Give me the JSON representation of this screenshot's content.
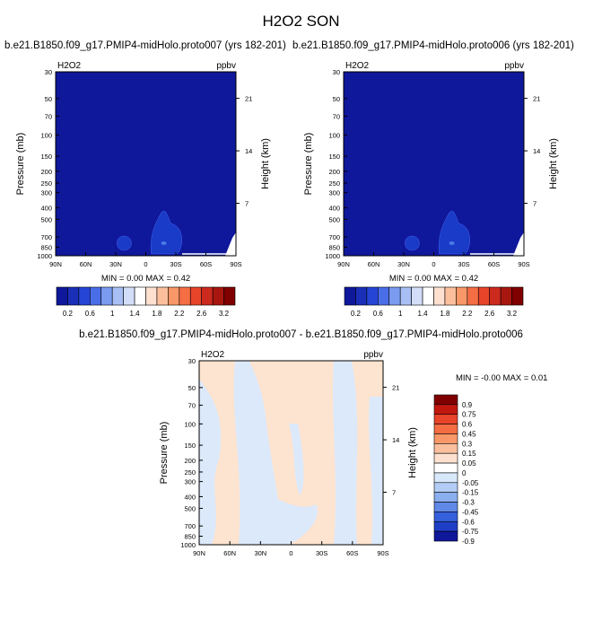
{
  "figure": {
    "title": "H2O2 SON",
    "diff_title": "b.e21.B1850.f09_g17.PMIP4-midHolo.proto007 - b.e21.B1850.f09_g17.PMIP4-midHolo.proto006"
  },
  "chart_data": [
    {
      "type": "heatmap",
      "title": "b.e21.B1850.f09_g17.PMIP4-midHolo.proto007 (yrs 182-201)",
      "variable": "H2O2",
      "units": "ppbv",
      "xlabel": "",
      "ylabel": "Pressure (mb)",
      "ylabel_right": "Height (km)",
      "x_ticks": [
        "90N",
        "60N",
        "30N",
        "0",
        "30S",
        "60S",
        "90S"
      ],
      "y_ticks": [
        "30",
        "50",
        "70",
        "100",
        "150",
        "200",
        "250",
        "300",
        "400",
        "500",
        "700",
        "850",
        "1000"
      ],
      "y_scale": "log",
      "y_range": [
        1000,
        30
      ],
      "height_ticks": [
        "21",
        "14",
        "7"
      ],
      "stats": "MIN =   0.00   MAX =   0.42",
      "colorbar_labels": [
        "0.2",
        "0.6",
        "1",
        "1.4",
        "1.8",
        "2.2",
        "2.6",
        "3.2"
      ],
      "field_color": "#0f179a",
      "blob_color": "#1a3ac8"
    },
    {
      "type": "heatmap",
      "title": "b.e21.B1850.f09_g17.PMIP4-midHolo.proto006 (yrs 182-201)",
      "variable": "H2O2",
      "units": "ppbv",
      "xlabel": "",
      "ylabel": "Pressure (mb)",
      "ylabel_right": "Height (km)",
      "x_ticks": [
        "90N",
        "60N",
        "30N",
        "0",
        "30S",
        "60S",
        "90S"
      ],
      "y_ticks": [
        "30",
        "50",
        "70",
        "100",
        "150",
        "200",
        "250",
        "300",
        "400",
        "500",
        "700",
        "850",
        "1000"
      ],
      "y_scale": "log",
      "y_range": [
        1000,
        30
      ],
      "height_ticks": [
        "21",
        "14",
        "7"
      ],
      "stats": "MIN =   0.00   MAX =   0.42",
      "colorbar_labels": [
        "0.2",
        "0.6",
        "1",
        "1.4",
        "1.8",
        "2.2",
        "2.6",
        "3.2"
      ],
      "field_color": "#0f179a",
      "blob_color": "#1a3ac8"
    },
    {
      "type": "heatmap",
      "title": "b.e21.B1850.f09_g17.PMIP4-midHolo.proto007 - b.e21.B1850.f09_g17.PMIP4-midHolo.proto006",
      "variable": "H2O2",
      "units": "ppbv",
      "xlabel": "",
      "ylabel": "Pressure (mb)",
      "ylabel_right": "Height (km)",
      "x_ticks": [
        "90N",
        "60N",
        "30N",
        "0",
        "30S",
        "60S",
        "90S"
      ],
      "y_ticks": [
        "30",
        "50",
        "70",
        "100",
        "150",
        "200",
        "250",
        "300",
        "400",
        "500",
        "700",
        "850",
        "1000"
      ],
      "y_scale": "log",
      "y_range": [
        1000,
        30
      ],
      "height_ticks": [
        "21",
        "14",
        "7"
      ],
      "stats": "MIN =  -0.00   MAX =   0.01",
      "colorbar_labels": [
        "0.9",
        "0.75",
        "0.6",
        "0.45",
        "0.3",
        "0.15",
        "0.05",
        "0",
        "-0.05",
        "-0.15",
        "-0.3",
        "-0.45",
        "-0.6",
        "-0.75",
        "-0.9"
      ],
      "regions": {
        "positive": "0 to 0.05",
        "negative": "-0.05 to 0"
      }
    }
  ],
  "colors": {
    "abs_scale": [
      "#0f179a",
      "#1a2fb8",
      "#2545d6",
      "#4a6ee8",
      "#7a9bf0",
      "#a7bff5",
      "#d2def8",
      "#ffffff",
      "#fde0cf",
      "#fbbf9e",
      "#f89768",
      "#f46d43",
      "#e8442a",
      "#cc2a1c",
      "#a8170f",
      "#800000"
    ],
    "diff_scale": [
      "#800000",
      "#c2170f",
      "#e8442a",
      "#f46d43",
      "#f89768",
      "#fbbf9e",
      "#fde0cf",
      "#ffffff",
      "#d8e8fb",
      "#b3ccf5",
      "#8aaeee",
      "#6088e6",
      "#3560dc",
      "#1f3ec6",
      "#0f179a"
    ],
    "diff_positive": "#fde4d0",
    "diff_negative": "#dce9fb"
  }
}
